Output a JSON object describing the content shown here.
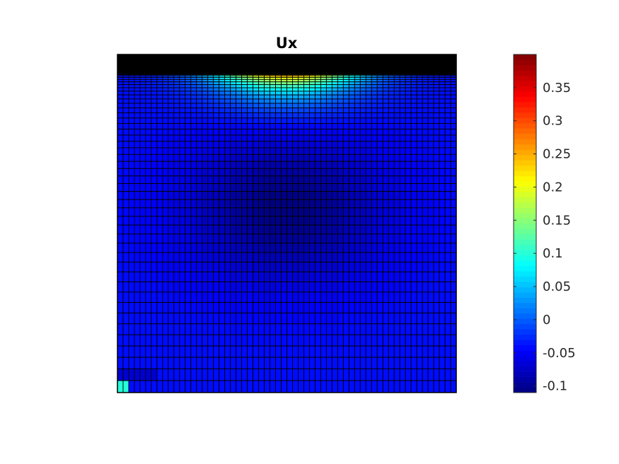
{
  "chart_data": {
    "type": "heatmap",
    "title": "Ux",
    "xlabel": "",
    "ylabel": "",
    "colormap": "jet",
    "color_range": [
      -0.11,
      0.4
    ],
    "colorbar_ticks": [
      {
        "value": 0.35,
        "label": "0.35"
      },
      {
        "value": 0.3,
        "label": "0.3"
      },
      {
        "value": 0.25,
        "label": "0.25"
      },
      {
        "value": 0.2,
        "label": "0.2"
      },
      {
        "value": 0.15,
        "label": "0.15"
      },
      {
        "value": 0.1,
        "label": "0.1"
      },
      {
        "value": 0.05,
        "label": "0.05"
      },
      {
        "value": 0,
        "label": "0"
      },
      {
        "value": -0.05,
        "label": "-0.05"
      },
      {
        "value": -0.1,
        "label": "-0.1"
      }
    ],
    "mesh": {
      "columns": 60,
      "rows": 45,
      "row_grading": "refined toward top edge",
      "edge_color": "#000000"
    },
    "field_features": {
      "top_band": "black, dense mesh",
      "max_value_near": "top-center",
      "max_value": 0.27,
      "min_value_region": "center",
      "min_value": -0.11,
      "bottom_left_cells": 0.1,
      "typical_value": -0.04
    },
    "axes_visible": false,
    "grid": false,
    "legend": "colorbar-right"
  }
}
